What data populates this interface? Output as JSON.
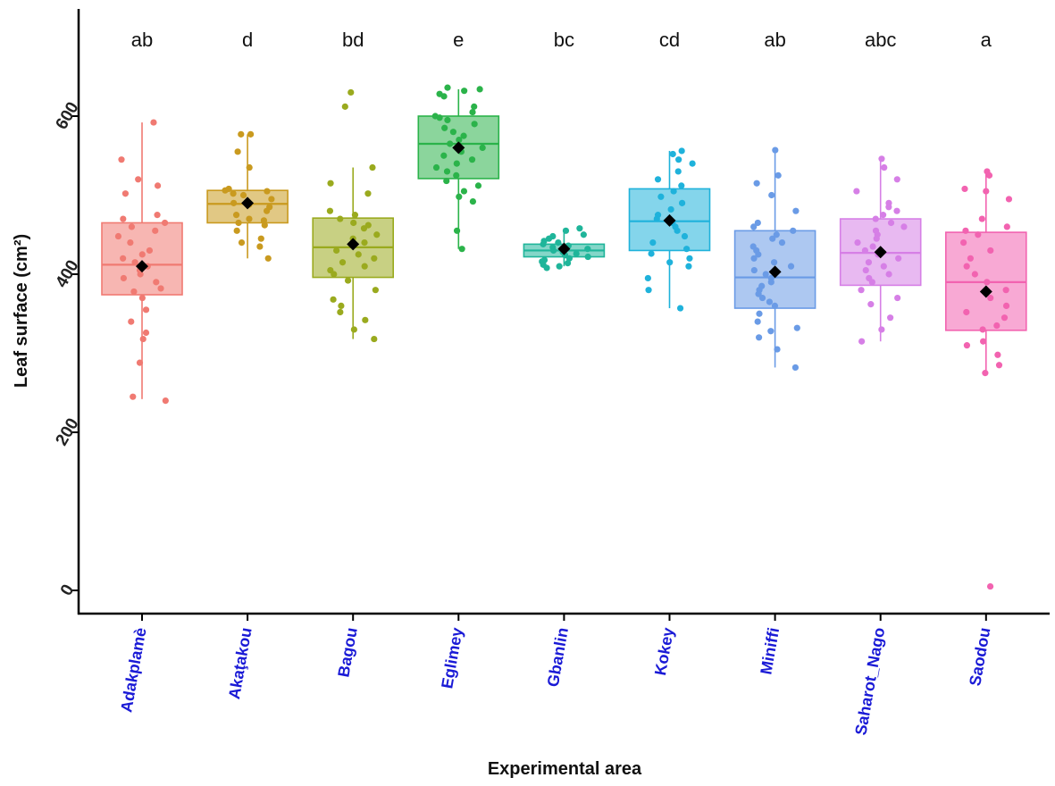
{
  "chart_data": {
    "type": "boxplot",
    "xlabel": "Experimental area",
    "ylabel": "Leaf surface (cm²)",
    "ylim": [
      -30,
      735
    ],
    "yticks": [
      0,
      200,
      400,
      600
    ],
    "categories": [
      "Adakplamè",
      "Akaţakou",
      "Bagou",
      "Eglimey",
      "Gbanlin",
      "Kokey",
      "Miniffi",
      "Saharot_Nago",
      "Saodou"
    ],
    "letters": [
      "ab",
      "d",
      "bd",
      "e",
      "bc",
      "cd",
      "ab",
      "abc",
      "a"
    ],
    "colors": [
      "#f07a72",
      "#c99a1f",
      "#9aaa1e",
      "#2bb34a",
      "#1fb59a",
      "#1fb2db",
      "#6a9be6",
      "#d67fe6",
      "#f263b0"
    ],
    "boxes": [
      {
        "whisker_low": 242,
        "q1": 374,
        "median": 412,
        "q3": 465,
        "whisker_high": 592,
        "mean": 410
      },
      {
        "whisker_low": 420,
        "q1": 465,
        "median": 489,
        "q3": 506,
        "whisker_high": 577,
        "mean": 490
      },
      {
        "whisker_low": 318,
        "q1": 396,
        "median": 434,
        "q3": 471,
        "whisker_high": 535,
        "mean": 438
      },
      {
        "whisker_low": 432,
        "q1": 521,
        "median": 565,
        "q3": 600,
        "whisker_high": 634,
        "mean": 560
      },
      {
        "whisker_low": 410,
        "q1": 422,
        "median": 430,
        "q3": 438,
        "whisker_high": 458,
        "mean": 432
      },
      {
        "whisker_low": 357,
        "q1": 430,
        "median": 467,
        "q3": 508,
        "whisker_high": 556,
        "mean": 468
      },
      {
        "whisker_low": 282,
        "q1": 357,
        "median": 396,
        "q3": 455,
        "whisker_high": 557,
        "mean": 403
      },
      {
        "whisker_low": 315,
        "q1": 386,
        "median": 427,
        "q3": 470,
        "whisker_high": 546,
        "mean": 428
      },
      {
        "whisker_low": 272,
        "q1": 329,
        "median": 390,
        "q3": 453,
        "whisker_high": 530,
        "mean": 378
      }
    ],
    "points": [
      [
        592,
        545,
        520,
        512,
        502,
        475,
        470,
        465,
        460,
        455,
        448,
        440,
        430,
        425,
        420,
        415,
        410,
        405,
        400,
        395,
        390,
        382,
        378,
        370,
        355,
        340,
        326,
        318,
        288,
        245,
        240
      ],
      [
        577,
        577,
        555,
        535,
        508,
        506,
        505,
        502,
        500,
        495,
        490,
        488,
        485,
        480,
        475,
        470,
        468,
        465,
        462,
        455,
        445,
        440,
        435,
        420
      ],
      [
        630,
        612,
        535,
        515,
        502,
        480,
        475,
        470,
        465,
        462,
        458,
        450,
        445,
        440,
        430,
        425,
        420,
        415,
        410,
        405,
        400,
        392,
        380,
        368,
        360,
        352,
        342,
        330,
        318
      ],
      [
        636,
        634,
        632,
        628,
        625,
        612,
        605,
        600,
        598,
        595,
        590,
        585,
        580,
        575,
        570,
        565,
        560,
        555,
        550,
        545,
        540,
        535,
        530,
        525,
        518,
        512,
        505,
        498,
        492,
        455,
        432
      ],
      [
        458,
        455,
        450,
        448,
        445,
        442,
        440,
        438,
        436,
        434,
        432,
        430,
        430,
        428,
        426,
        424,
        422,
        420,
        418,
        416,
        414,
        412,
        410,
        408
      ],
      [
        556,
        552,
        545,
        540,
        530,
        520,
        512,
        505,
        498,
        490,
        482,
        475,
        470,
        465,
        460,
        455,
        448,
        440,
        432,
        426,
        420,
        415,
        410,
        395,
        380,
        357
      ],
      [
        557,
        525,
        515,
        500,
        480,
        465,
        460,
        455,
        450,
        445,
        440,
        435,
        430,
        425,
        420,
        415,
        410,
        405,
        400,
        395,
        390,
        385,
        380,
        375,
        370,
        365,
        360,
        350,
        340,
        332,
        328,
        320,
        305,
        282
      ],
      [
        546,
        535,
        520,
        505,
        490,
        485,
        480,
        475,
        470,
        465,
        460,
        455,
        450,
        445,
        440,
        435,
        430,
        425,
        420,
        415,
        410,
        405,
        400,
        395,
        390,
        380,
        370,
        362,
        345,
        330,
        315
      ],
      [
        530,
        525,
        508,
        505,
        495,
        470,
        460,
        455,
        450,
        440,
        430,
        420,
        410,
        400,
        390,
        380,
        370,
        360,
        352,
        345,
        335,
        330,
        315,
        310,
        298,
        285,
        275,
        5
      ]
    ]
  }
}
